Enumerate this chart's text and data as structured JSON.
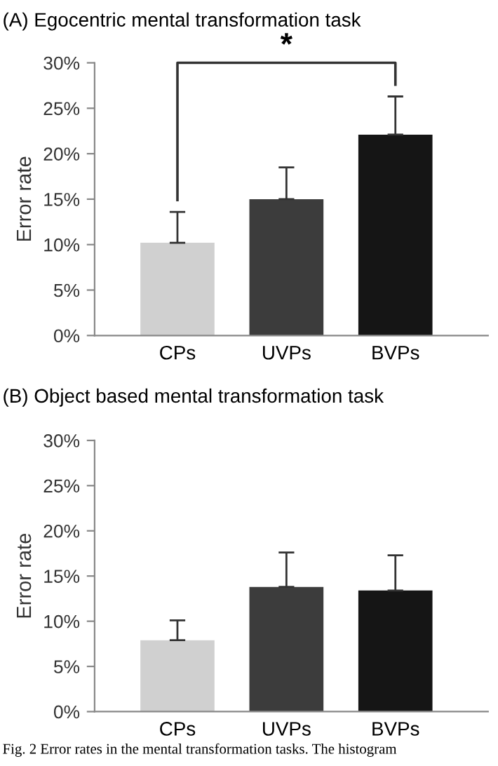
{
  "chart_data": [
    {
      "type": "bar",
      "title": "(A) Egocentric mental transformation task",
      "ylabel": "Error rate",
      "categories": [
        "CPs",
        "UVPs",
        "BVPs"
      ],
      "values": [
        10.2,
        15.0,
        22.1
      ],
      "colors": [
        "#d0d0d0",
        "#3c3c3c",
        "#151515"
      ],
      "errors": [
        [
          10.2,
          13.6
        ],
        [
          15.0,
          18.5
        ],
        [
          22.1,
          26.3
        ]
      ],
      "ylim": [
        0,
        30
      ],
      "yticks": [
        {
          "value": 0,
          "label": "0%"
        },
        {
          "value": 5,
          "label": "5%"
        },
        {
          "value": 10,
          "label": "10%"
        },
        {
          "value": 15,
          "label": "15%"
        },
        {
          "value": 20,
          "label": "20%"
        },
        {
          "value": 25,
          "label": "25%"
        },
        {
          "value": 30,
          "label": "30%"
        }
      ],
      "grid": false,
      "legend": false,
      "annotations": [
        "*"
      ]
    },
    {
      "type": "bar",
      "title": "(B) Object based mental transformation task",
      "ylabel": "Error rate",
      "categories": [
        "CPs",
        "UVPs",
        "BVPs"
      ],
      "values": [
        7.9,
        13.8,
        13.4
      ],
      "colors": [
        "#d0d0d0",
        "#3c3c3c",
        "#151515"
      ],
      "errors": [
        [
          7.9,
          10.1
        ],
        [
          13.8,
          17.6
        ],
        [
          13.4,
          17.3
        ]
      ],
      "ylim": [
        0,
        30
      ],
      "yticks": [
        {
          "value": 0,
          "label": "0%"
        },
        {
          "value": 5,
          "label": "5%"
        },
        {
          "value": 10,
          "label": "10%"
        },
        {
          "value": 15,
          "label": "15%"
        },
        {
          "value": 20,
          "label": "20%"
        },
        {
          "value": 25,
          "label": "25%"
        },
        {
          "value": 30,
          "label": "30%"
        }
      ],
      "grid": false,
      "legend": false,
      "annotations": [
        "Fig. 2 Error rates in the mental transformation tasks. The histogram"
      ]
    }
  ]
}
